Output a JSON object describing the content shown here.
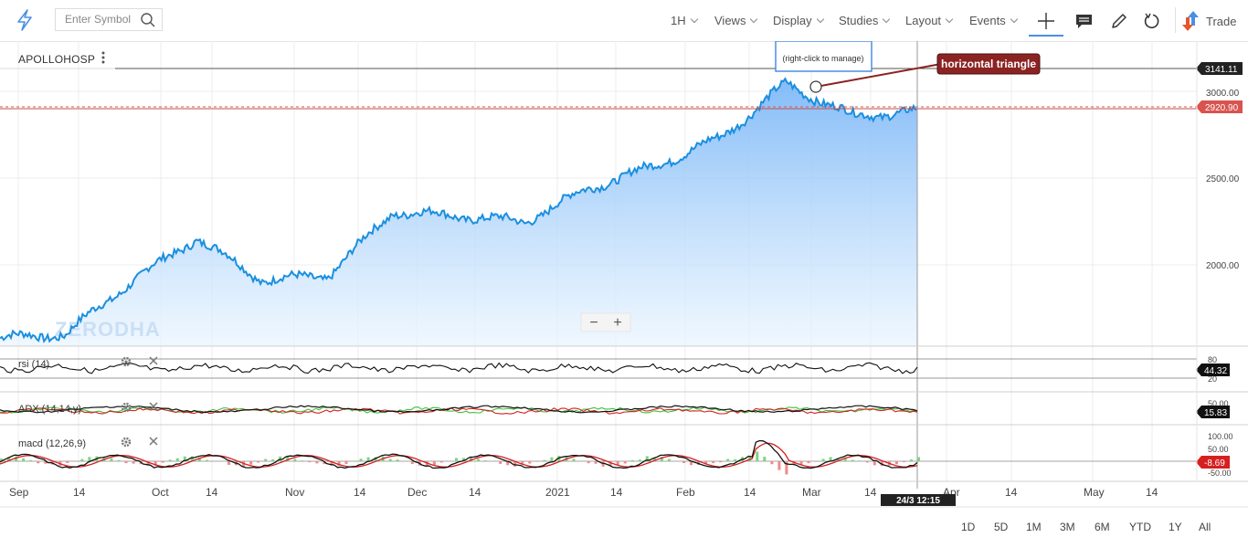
{
  "toolbar": {
    "search_placeholder": "Enter Symbol",
    "menus": [
      "1H",
      "Views",
      "Display",
      "Studies",
      "Layout",
      "Events"
    ],
    "trade_label": "Trade"
  },
  "symbol": "APOLLOHOSP",
  "drawing": {
    "tooltip": "(right-click to manage)",
    "annotation": "horizontal triangle"
  },
  "watermark": "ZERODHA",
  "price_axis": {
    "ticks": [
      "3000.00",
      "2500.00",
      "2000.00"
    ],
    "last_high": "3141.11",
    "current": "2920.90"
  },
  "panes": {
    "rsi": {
      "label": "rsi (14)",
      "value": "44.32",
      "ticks": [
        "80",
        "20"
      ]
    },
    "adx": {
      "label": "ADX (14,14,y)",
      "value": "15.83",
      "ticks": [
        "50.00"
      ]
    },
    "macd": {
      "label": "macd (12,26,9)",
      "value": "-8.69",
      "ticks": [
        "100.00",
        "50.00",
        "-50.00"
      ]
    }
  },
  "x_axis": {
    "labels": [
      "Sep",
      "14",
      "Oct",
      "14",
      "Nov",
      "14",
      "Dec",
      "14",
      "2021",
      "14",
      "Feb",
      "14",
      "Mar",
      "14",
      "Apr",
      "14",
      "May",
      "14"
    ],
    "crosshair_time": "24/3 12:15"
  },
  "range_buttons": [
    "1D",
    "5D",
    "1M",
    "3M",
    "6M",
    "YTD",
    "1Y",
    "All"
  ],
  "colors": {
    "accent": "#4b8ee6",
    "price_line": "#1a8fe0",
    "area_fill": "#a8d0fb",
    "alert_red": "#d9534f",
    "annotation_bg": "#8b2323"
  },
  "chart_data": {
    "type": "area",
    "x": [
      "Sep",
      "Sep 14",
      "Oct",
      "Oct 14",
      "Nov",
      "Nov 14",
      "Dec",
      "Dec 14",
      "2021",
      "Jan 14",
      "Feb",
      "Feb 14",
      "Mar",
      "Mar 14",
      "Mar 24"
    ],
    "series": [
      {
        "values": [
          1790,
          1810,
          2070,
          2290,
          2080,
          2100,
          2420,
          2400,
          2370,
          2540,
          2650,
          2790,
          3060,
          2900,
          2920.9
        ]
      }
    ],
    "ylim": [
      1750,
      3250
    ],
    "last_high": 3141.11,
    "current": 2920.9,
    "grid": true
  }
}
